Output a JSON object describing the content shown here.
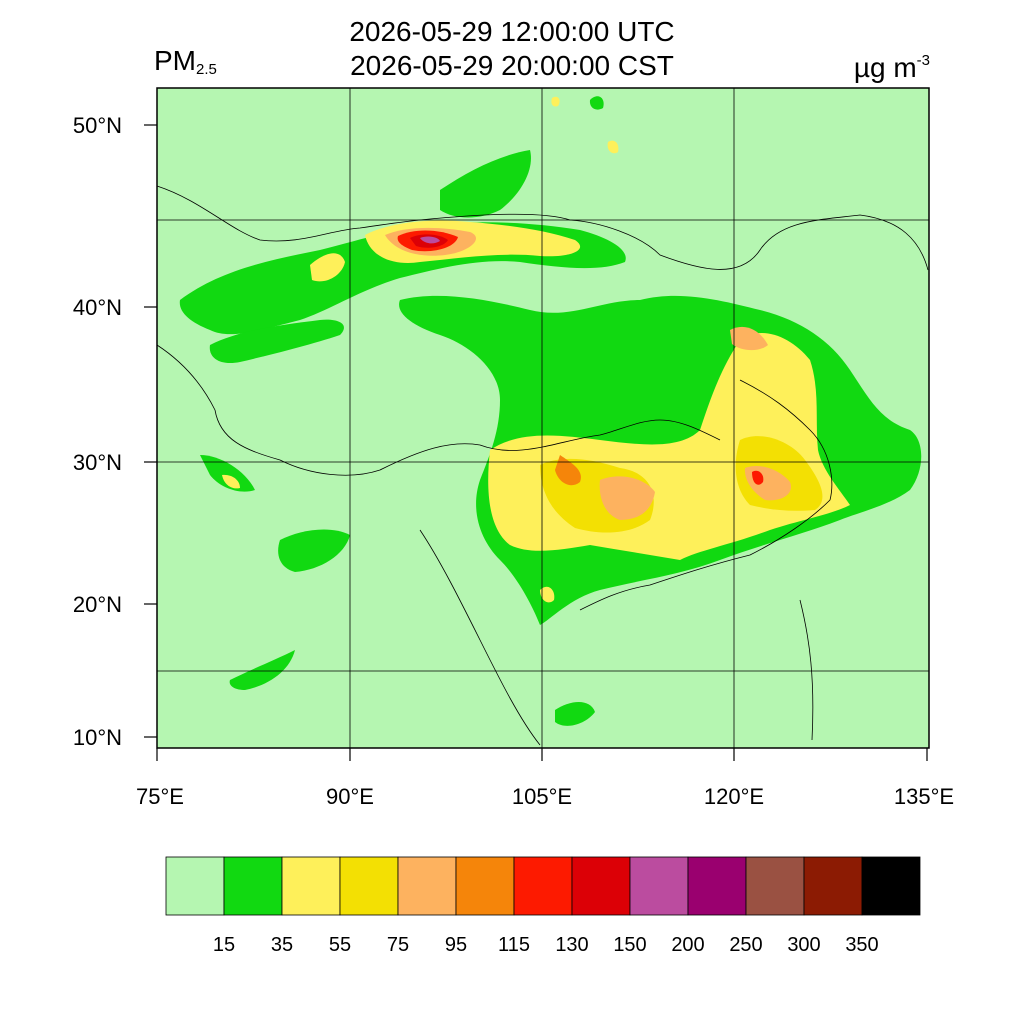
{
  "title": {
    "line1": "2026-05-29 12:00:00 UTC",
    "line2": "2026-05-29 20:00:00 CST"
  },
  "variable": {
    "main": "PM",
    "subscript": "2.5"
  },
  "unit": {
    "main": "µg m",
    "superscript": "-3"
  },
  "axes": {
    "lat_labels": [
      "50°N",
      "40°N",
      "30°N",
      "20°N",
      "10°N"
    ],
    "lon_labels": [
      "75°E",
      "90°E",
      "105°E",
      "120°E",
      "135°E"
    ]
  },
  "legend": {
    "colors": [
      "#b5f6b1",
      "#11d911",
      "#fef05a",
      "#f3e003",
      "#fdb25f",
      "#f5850a",
      "#fd1a00",
      "#dc0006",
      "#bb4c9f",
      "#9a006f",
      "#9a5142",
      "#8c1b03",
      "#000000"
    ],
    "labels": [
      "15",
      "35",
      "55",
      "75",
      "95",
      "115",
      "130",
      "150",
      "200",
      "250",
      "300",
      "350"
    ]
  }
}
